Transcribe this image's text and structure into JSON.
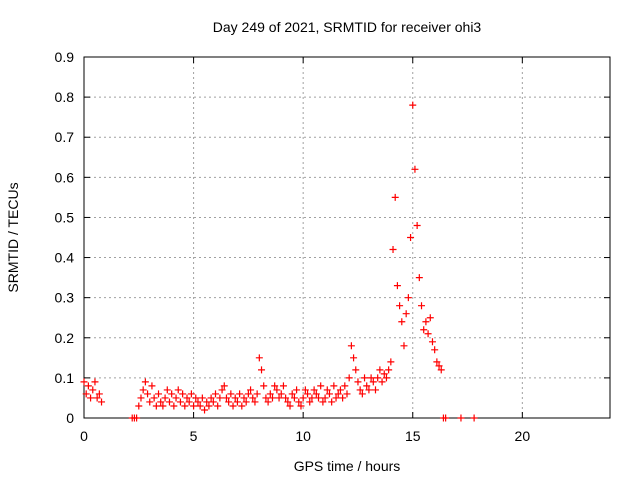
{
  "chart_data": {
    "type": "scatter",
    "title": "Day 249 of 2021, SRMTID for receiver ohi3",
    "xlabel": "GPS time / hours",
    "ylabel": "SRMTID / TECUs",
    "xlim": [
      0,
      24
    ],
    "ylim": [
      0,
      0.9
    ],
    "x_ticks": [
      0,
      5,
      10,
      15,
      20
    ],
    "y_ticks": [
      0,
      0.1,
      0.2,
      0.3,
      0.4,
      0.5,
      0.6,
      0.7,
      0.8,
      0.9
    ],
    "grid": true,
    "marker": "+",
    "series": [
      {
        "name": "SRMTID",
        "color": "#ff0000",
        "x": [
          0.0,
          0.1,
          0.2,
          0.3,
          0.4,
          0.5,
          0.6,
          0.7,
          0.8,
          2.2,
          2.3,
          2.4,
          2.5,
          2.6,
          2.7,
          2.8,
          2.9,
          3.0,
          3.1,
          3.2,
          3.3,
          3.4,
          3.5,
          3.6,
          3.7,
          3.8,
          3.9,
          4.0,
          4.1,
          4.2,
          4.3,
          4.4,
          4.5,
          4.6,
          4.7,
          4.8,
          4.9,
          5.0,
          5.1,
          5.2,
          5.3,
          5.4,
          5.5,
          5.6,
          5.7,
          5.8,
          5.9,
          6.0,
          6.1,
          6.2,
          6.3,
          6.4,
          6.5,
          6.6,
          6.7,
          6.8,
          6.9,
          7.0,
          7.1,
          7.2,
          7.3,
          7.4,
          7.5,
          7.6,
          7.7,
          7.8,
          7.9,
          8.0,
          8.1,
          8.2,
          8.3,
          8.4,
          8.5,
          8.6,
          8.7,
          8.8,
          8.9,
          9.0,
          9.1,
          9.2,
          9.3,
          9.4,
          9.5,
          9.6,
          9.7,
          9.8,
          9.9,
          10.0,
          10.1,
          10.2,
          10.3,
          10.4,
          10.5,
          10.6,
          10.7,
          10.8,
          10.9,
          11.0,
          11.1,
          11.2,
          11.3,
          11.4,
          11.5,
          11.6,
          11.7,
          11.8,
          11.9,
          12.0,
          12.1,
          12.2,
          12.3,
          12.4,
          12.5,
          12.6,
          12.7,
          12.8,
          12.9,
          13.0,
          13.1,
          13.2,
          13.3,
          13.4,
          13.5,
          13.6,
          13.7,
          13.8,
          13.9,
          14.0,
          14.1,
          14.2,
          14.3,
          14.4,
          14.5,
          14.6,
          14.7,
          14.8,
          14.9,
          15.0,
          15.1,
          15.2,
          15.3,
          15.4,
          15.5,
          15.6,
          15.7,
          15.8,
          15.9,
          16.0,
          16.1,
          16.2,
          16.3,
          16.4,
          16.5,
          17.2,
          17.8
        ],
        "y": [
          0.09,
          0.06,
          0.08,
          0.05,
          0.07,
          0.09,
          0.05,
          0.06,
          0.04,
          0.0,
          0.0,
          0.0,
          0.03,
          0.05,
          0.07,
          0.09,
          0.06,
          0.04,
          0.08,
          0.05,
          0.03,
          0.06,
          0.04,
          0.03,
          0.05,
          0.07,
          0.04,
          0.06,
          0.03,
          0.05,
          0.07,
          0.04,
          0.06,
          0.03,
          0.05,
          0.04,
          0.06,
          0.03,
          0.05,
          0.04,
          0.03,
          0.05,
          0.02,
          0.04,
          0.03,
          0.05,
          0.04,
          0.06,
          0.03,
          0.05,
          0.07,
          0.08,
          0.05,
          0.04,
          0.06,
          0.03,
          0.05,
          0.04,
          0.06,
          0.03,
          0.05,
          0.04,
          0.06,
          0.07,
          0.05,
          0.04,
          0.06,
          0.15,
          0.12,
          0.08,
          0.05,
          0.04,
          0.06,
          0.05,
          0.08,
          0.07,
          0.05,
          0.06,
          0.08,
          0.05,
          0.04,
          0.03,
          0.06,
          0.05,
          0.07,
          0.04,
          0.03,
          0.05,
          0.07,
          0.06,
          0.04,
          0.05,
          0.07,
          0.06,
          0.05,
          0.08,
          0.04,
          0.05,
          0.07,
          0.06,
          0.04,
          0.08,
          0.05,
          0.06,
          0.07,
          0.05,
          0.08,
          0.06,
          0.1,
          0.18,
          0.15,
          0.12,
          0.09,
          0.07,
          0.06,
          0.1,
          0.08,
          0.07,
          0.1,
          0.09,
          0.07,
          0.1,
          0.12,
          0.09,
          0.11,
          0.1,
          0.12,
          0.14,
          0.42,
          0.55,
          0.33,
          0.28,
          0.24,
          0.18,
          0.26,
          0.3,
          0.45,
          0.78,
          0.62,
          0.48,
          0.35,
          0.28,
          0.22,
          0.24,
          0.21,
          0.25,
          0.19,
          0.17,
          0.14,
          0.13,
          0.12,
          0.0,
          0.0,
          0.0,
          0.0
        ]
      }
    ]
  }
}
